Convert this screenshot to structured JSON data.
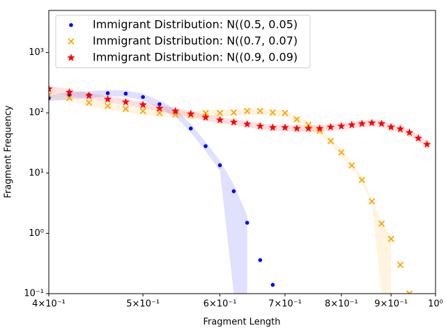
{
  "chart_data": {
    "type": "scatter",
    "xlabel": "Fragment Length",
    "ylabel": "Fragment Frequency",
    "xscale": "log",
    "yscale": "log",
    "xlim": [
      0.4,
      1.0
    ],
    "ylim": [
      0.1,
      5000
    ],
    "xticks": [
      {
        "value": 0.4,
        "label": "4×10⁻¹"
      },
      {
        "value": 0.5,
        "label": "5×10⁻¹"
      },
      {
        "value": 0.6,
        "label": "6×10⁻¹"
      },
      {
        "value": 0.7,
        "label": "7×10⁻¹"
      },
      {
        "value": 0.8,
        "label": "8×10⁻¹"
      },
      {
        "value": 0.9,
        "label": "9×10⁻¹"
      },
      {
        "value": 1.0,
        "label": "10⁰"
      }
    ],
    "yticks": [
      {
        "value": 0.1,
        "label": "10⁻¹"
      },
      {
        "value": 1,
        "label": "10⁰"
      },
      {
        "value": 10,
        "label": "10¹"
      },
      {
        "value": 100,
        "label": "10²"
      },
      {
        "value": 1000,
        "label": "10³"
      }
    ],
    "legend": "upper left",
    "series": [
      {
        "name": "Immigrant Distribution: N((0.5, 0.05)",
        "color": "#0000ff",
        "marker": "dot",
        "x": [
          0.4,
          0.42,
          0.44,
          0.46,
          0.48,
          0.5,
          0.52,
          0.54,
          0.56,
          0.58,
          0.6,
          0.62,
          0.64,
          0.66,
          0.68
        ],
        "values": [
          175,
          190,
          199,
          212,
          208,
          183,
          139,
          100,
          55,
          28,
          13.5,
          5.0,
          1.5,
          0.36,
          0.14
        ],
        "band_upper": [
          200,
          218,
          228,
          240,
          235,
          208,
          160,
          116,
          65,
          33,
          16,
          6.5,
          2.0,
          null,
          null
        ],
        "band_lower": [
          155,
          168,
          176,
          188,
          185,
          162,
          120,
          86,
          47,
          23,
          11,
          0.1,
          0.1,
          null,
          null
        ]
      },
      {
        "name": "Immigrant Distribution: N((0.7, 0.07)",
        "color": "#ffa500",
        "marker": "x",
        "x": [
          0.4,
          0.42,
          0.44,
          0.46,
          0.48,
          0.5,
          0.52,
          0.54,
          0.56,
          0.58,
          0.6,
          0.62,
          0.64,
          0.66,
          0.68,
          0.7,
          0.72,
          0.74,
          0.76,
          0.78,
          0.8,
          0.82,
          0.84,
          0.86,
          0.88,
          0.9,
          0.92,
          0.94
        ],
        "values": [
          197,
          177,
          147,
          130,
          116,
          107,
          99,
          94,
          91,
          99,
          99,
          101,
          107,
          107,
          101,
          99,
          78,
          63,
          50,
          34,
          22,
          13.4,
          7.7,
          3.4,
          1.45,
          0.81,
          0.3,
          0.1
        ],
        "band_upper": [
          221,
          198,
          165,
          146,
          130,
          120,
          111,
          105,
          102,
          111,
          111,
          113,
          120,
          120,
          113,
          111,
          87,
          71,
          56,
          38,
          25,
          15,
          8.6,
          3.8,
          1.6,
          0.9,
          null,
          null
        ],
        "band_lower": [
          173,
          156,
          129,
          114,
          102,
          94,
          87,
          83,
          80,
          87,
          87,
          89,
          94,
          94,
          89,
          87,
          69,
          55,
          44,
          30,
          19,
          11.8,
          6.8,
          3.0,
          0.1,
          0.1,
          null,
          null
        ]
      },
      {
        "name": "Immigrant Distribution: N((0.9, 0.09)",
        "color": "#ff0000",
        "marker": "star",
        "x": [
          0.4,
          0.42,
          0.44,
          0.46,
          0.48,
          0.5,
          0.52,
          0.54,
          0.56,
          0.58,
          0.6,
          0.62,
          0.64,
          0.66,
          0.68,
          0.7,
          0.72,
          0.74,
          0.76,
          0.78,
          0.8,
          0.82,
          0.84,
          0.86,
          0.88,
          0.9,
          0.92,
          0.94,
          0.96,
          0.98
        ],
        "values": [
          250,
          219,
          192,
          168,
          151,
          136,
          119,
          107,
          96,
          84,
          76,
          70,
          65,
          60,
          57,
          57,
          55,
          55,
          55,
          58,
          60,
          63,
          66,
          68,
          66,
          58,
          54,
          47,
          38,
          30
        ],
        "band_upper": [
          280,
          245,
          215,
          188,
          169,
          152,
          133,
          120,
          108,
          94,
          85,
          78,
          73,
          67,
          64,
          64,
          62,
          62,
          62,
          65,
          67,
          71,
          74,
          76,
          74,
          65,
          60,
          53,
          43,
          34
        ],
        "band_lower": [
          220,
          193,
          169,
          148,
          133,
          120,
          105,
          94,
          84,
          74,
          67,
          62,
          57,
          53,
          50,
          50,
          48,
          48,
          48,
          51,
          53,
          55,
          58,
          60,
          58,
          51,
          48,
          41,
          33,
          26
        ]
      }
    ]
  }
}
